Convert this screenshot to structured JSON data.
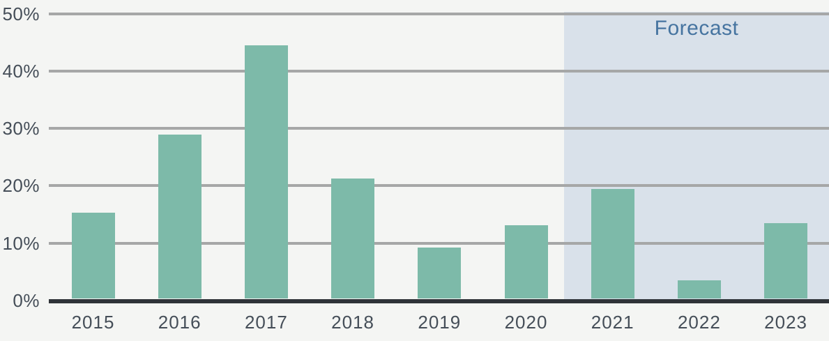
{
  "chart_data": {
    "type": "bar",
    "title": "",
    "xlabel": "",
    "ylabel": "",
    "categories": [
      "2015",
      "2016",
      "2017",
      "2018",
      "2019",
      "2020",
      "2021",
      "2022",
      "2023"
    ],
    "values": [
      15.0,
      28.6,
      44.2,
      21.0,
      8.9,
      12.8,
      19.1,
      3.2,
      13.2
    ],
    "unit": "%",
    "ylim": [
      0,
      50
    ],
    "ytick_values": [
      0,
      10,
      20,
      30,
      40,
      50
    ],
    "ytick_labels": [
      "0%",
      "10%",
      "20%",
      "30%",
      "40%",
      "50%"
    ],
    "grid": true,
    "legend": null,
    "forecast": {
      "label": "Forecast",
      "start_category": "2021",
      "end_category": "2023"
    }
  },
  "colors": {
    "background": "#f4f5f3",
    "bar": "#7dbaa9",
    "forecast_background": "#d9e1ea",
    "forecast_text": "#4674a0",
    "gridline": "#a6a7a7",
    "axis_line": "#2f3338",
    "tick_text": "#454e58"
  }
}
